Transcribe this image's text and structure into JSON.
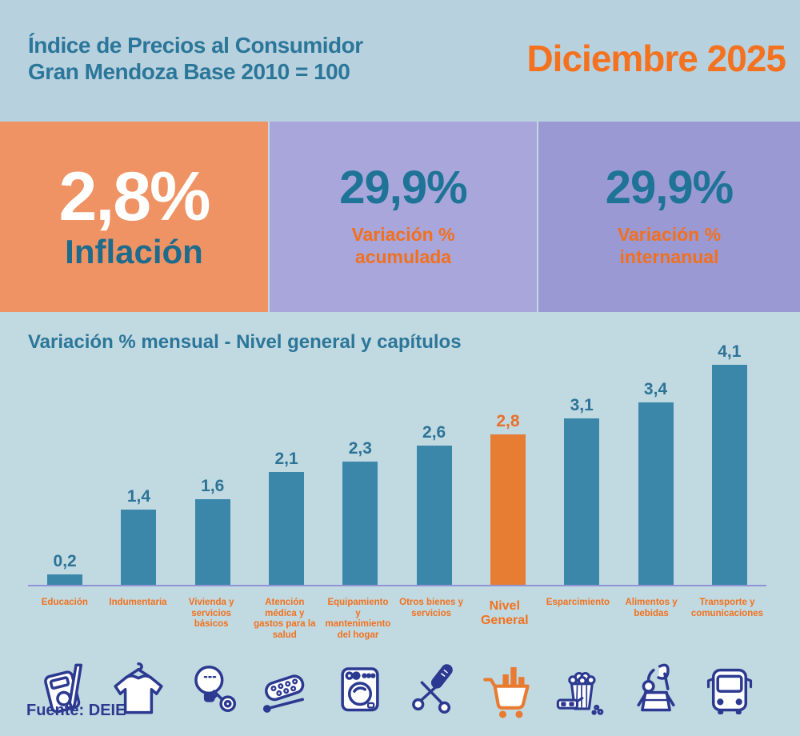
{
  "header": {
    "title_line1": "Índice de Precios al Consumidor",
    "title_line2": "Gran Mendoza Base 2010 = 100",
    "period": "Diciembre 2025"
  },
  "stats": {
    "inflation": {
      "value": "2,8%",
      "label": "Inflación"
    },
    "accumulated": {
      "value": "29,9%",
      "label": "Variación %\nacumulada"
    },
    "yearly": {
      "value": "29,9%",
      "label": "Variación %\ninternanual"
    }
  },
  "chart_data": {
    "type": "bar",
    "title": "Variación % mensual - Nivel general y capítulos",
    "categories": [
      "Educación",
      "Indumentaria",
      "Vivienda y servicios básicos",
      "Atención médica y gastos para la salud",
      "Equipamiento y mantenimiento del hogar",
      "Otros bienes y servicios",
      "Nivel General",
      "Esparcimiento",
      "Alimentos y bebidas",
      "Transporte y comunicaciones"
    ],
    "values": [
      0.2,
      1.4,
      1.6,
      2.1,
      2.3,
      2.6,
      2.8,
      3.1,
      3.4,
      4.1
    ],
    "value_labels": [
      "0,2",
      "1,4",
      "1,6",
      "2,1",
      "2,3",
      "2,6",
      "2,8",
      "3,1",
      "3,4",
      "4,1"
    ],
    "highlight_index": 6,
    "highlight_category": "Nivel General",
    "bar_color": "#3a87a9",
    "highlight_color": "#e67d33",
    "ylim": [
      0,
      4.5
    ],
    "grid": false,
    "legend": false,
    "xlabel": "",
    "ylabel": "",
    "icons": [
      "book-and-pen",
      "t-shirt",
      "lightbulb-and-key",
      "pill-blister",
      "washing-machine",
      "scissors-and-razor",
      "shopping-cart-with-bars",
      "popcorn-and-3d-glasses",
      "grocery-basket",
      "bus"
    ]
  },
  "footer": {
    "source": "Fuente: DEIE"
  },
  "colors": {
    "background_top": "#b7d1de",
    "background_chart": "#c1d9e1",
    "teal_text": "#2b7699",
    "orange_text": "#f2701d",
    "orange_box": "#ef9364",
    "purple_box_light": "#a8a6db",
    "purple_box_dark": "#9b99d4",
    "bar_teal": "#3a87a9",
    "bar_orange": "#e67d33",
    "icon_blue": "#2b3a90",
    "axis_line": "#9193d6"
  }
}
